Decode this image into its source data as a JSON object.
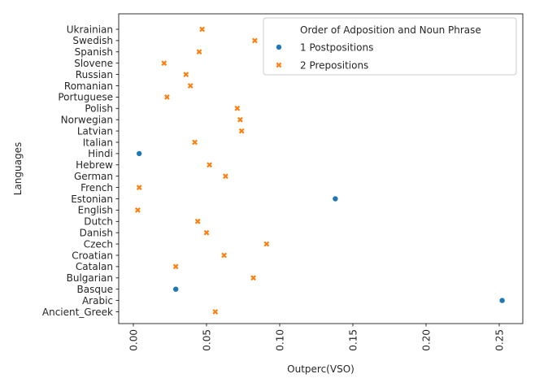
{
  "chart_data": {
    "type": "scatter",
    "title": "",
    "xlabel": "Outperc(VSO)",
    "ylabel": "Languages",
    "xlim": [
      -0.008,
      0.262
    ],
    "xticks": [
      0.0,
      0.05,
      0.1,
      0.15,
      0.2,
      0.25
    ],
    "xtick_labels": [
      "0.00",
      "0.05",
      "0.10",
      "0.15",
      "0.20",
      "0.25"
    ],
    "xtick_rotation": 90,
    "grid": false,
    "categories": [
      "Ukrainian",
      "Swedish",
      "Spanish",
      "Slovene",
      "Russian",
      "Romanian",
      "Portuguese",
      "Polish",
      "Norwegian",
      "Latvian",
      "Italian",
      "Hindi",
      "Hebrew",
      "German",
      "French",
      "Estonian",
      "English",
      "Dutch",
      "Danish",
      "Czech",
      "Croatian",
      "Catalan",
      "Bulgarian",
      "Basque",
      "Arabic",
      "Ancient_Greek"
    ],
    "legend": {
      "title": "Order of Adposition and Noun Phrase",
      "placement": "top-right"
    },
    "series": [
      {
        "name": "1 Postpositions",
        "marker": "circle",
        "color": "#1f77b4",
        "points": [
          {
            "y": "Hindi",
            "x": 0.004
          },
          {
            "y": "Estonian",
            "x": 0.138
          },
          {
            "y": "Basque",
            "x": 0.029
          },
          {
            "y": "Arabic",
            "x": 0.252
          }
        ]
      },
      {
        "name": "2 Prepositions",
        "marker": "x",
        "color": "#ff7f0e",
        "points": [
          {
            "y": "Ukrainian",
            "x": 0.047
          },
          {
            "y": "Swedish",
            "x": 0.083
          },
          {
            "y": "Spanish",
            "x": 0.045
          },
          {
            "y": "Slovene",
            "x": 0.021
          },
          {
            "y": "Russian",
            "x": 0.036
          },
          {
            "y": "Romanian",
            "x": 0.039
          },
          {
            "y": "Portuguese",
            "x": 0.023
          },
          {
            "y": "Polish",
            "x": 0.071
          },
          {
            "y": "Norwegian",
            "x": 0.073
          },
          {
            "y": "Latvian",
            "x": 0.074
          },
          {
            "y": "Italian",
            "x": 0.042
          },
          {
            "y": "Hebrew",
            "x": 0.052
          },
          {
            "y": "German",
            "x": 0.063
          },
          {
            "y": "French",
            "x": 0.004
          },
          {
            "y": "English",
            "x": 0.003
          },
          {
            "y": "Dutch",
            "x": 0.044
          },
          {
            "y": "Danish",
            "x": 0.05
          },
          {
            "y": "Czech",
            "x": 0.091
          },
          {
            "y": "Croatian",
            "x": 0.062
          },
          {
            "y": "Catalan",
            "x": 0.029
          },
          {
            "y": "Bulgarian",
            "x": 0.082
          },
          {
            "y": "Ancient_Greek",
            "x": 0.056
          }
        ]
      }
    ]
  }
}
